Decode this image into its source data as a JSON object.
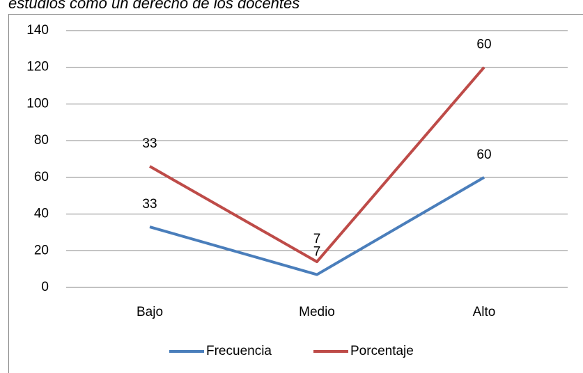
{
  "chart_data": {
    "type": "line",
    "stacked": true,
    "title": "estudios como un derecho de los docentes",
    "categories": [
      "Bajo",
      "Medio",
      "Alto"
    ],
    "series": [
      {
        "name": "Frecuencia",
        "color": "#4a7ebb",
        "values": [
          33,
          7,
          60
        ]
      },
      {
        "name": "Porcentaje",
        "color": "#be4b48",
        "values": [
          33,
          7,
          60
        ]
      }
    ],
    "ylim": [
      0,
      140
    ],
    "yticks": [
      0,
      20,
      40,
      60,
      80,
      100,
      120,
      140
    ],
    "grid": true,
    "legend": "bottom",
    "data_labels": true
  }
}
